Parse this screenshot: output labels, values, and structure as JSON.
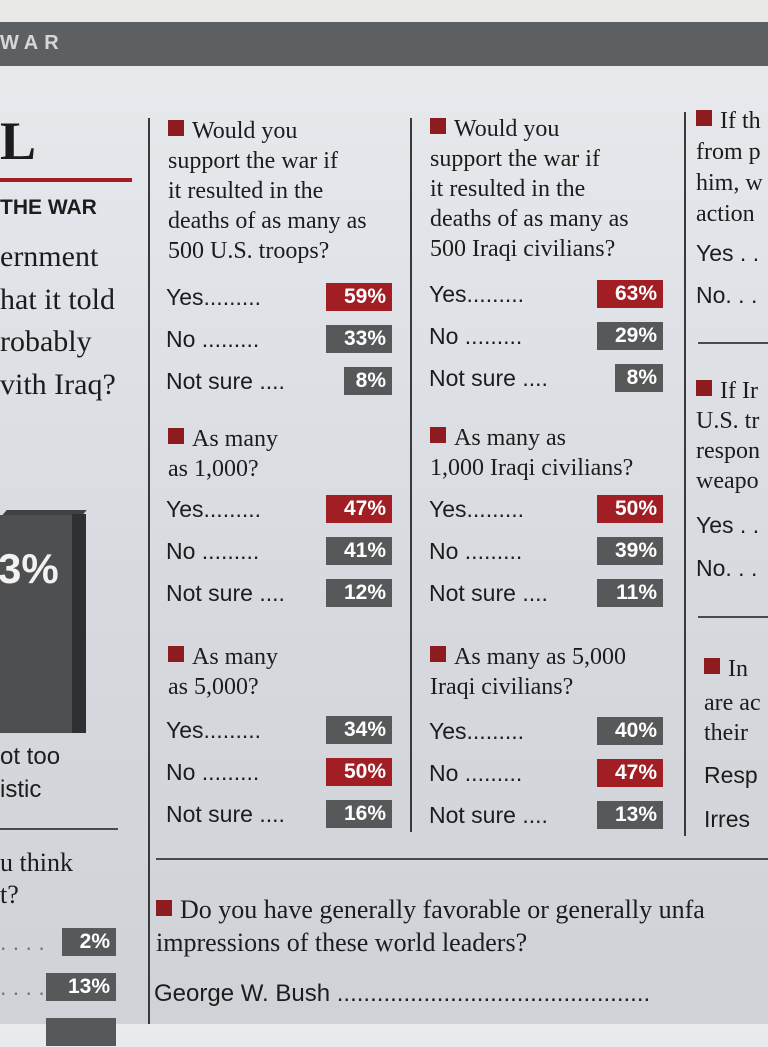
{
  "header": {
    "section_label": "WAR"
  },
  "left_column": {
    "big_letter": "L",
    "kicker": "THE WAR",
    "question_fragments": [
      "ernment",
      "hat it told",
      "robably",
      "vith Iraq?"
    ],
    "chart_value": "3%",
    "caption_fragments": [
      "ot too",
      "istic"
    ],
    "lower_question_fragments": [
      "u think",
      "t?"
    ],
    "lower_values": [
      "2%",
      "13%"
    ]
  },
  "col1": [
    {
      "question": [
        "Would you",
        "support the war if",
        "it resulted in the",
        "deaths of as many as",
        "500 U.S. troops?"
      ],
      "rows": [
        {
          "label": "Yes",
          "dots": ".........",
          "value": "59%",
          "highlight": "red"
        },
        {
          "label": "No",
          "dots": " .........",
          "value": "33%",
          "highlight": "gray"
        },
        {
          "label": "Not sure",
          "dots": " ....",
          "value": "8%",
          "highlight": "gray"
        }
      ]
    },
    {
      "question": [
        "As many",
        "as 1,000?"
      ],
      "rows": [
        {
          "label": "Yes",
          "dots": ".........",
          "value": "47%",
          "highlight": "red"
        },
        {
          "label": "No",
          "dots": " .........",
          "value": "41%",
          "highlight": "gray"
        },
        {
          "label": "Not sure",
          "dots": " ....",
          "value": "12%",
          "highlight": "gray"
        }
      ]
    },
    {
      "question": [
        "As many",
        "as 5,000?"
      ],
      "rows": [
        {
          "label": "Yes",
          "dots": ".........",
          "value": "34%",
          "highlight": "gray"
        },
        {
          "label": "No",
          "dots": " .........",
          "value": "50%",
          "highlight": "red"
        },
        {
          "label": "Not sure",
          "dots": " ....",
          "value": "16%",
          "highlight": "gray"
        }
      ]
    }
  ],
  "col2": [
    {
      "question": [
        "Would you",
        "support the war if",
        "it resulted in the",
        "deaths of as many as",
        "500 Iraqi civilians?"
      ],
      "rows": [
        {
          "label": "Yes",
          "dots": ".........",
          "value": "63%",
          "highlight": "red"
        },
        {
          "label": "No",
          "dots": " .........",
          "value": "29%",
          "highlight": "gray"
        },
        {
          "label": "Not sure",
          "dots": " ....",
          "value": "8%",
          "highlight": "gray"
        }
      ]
    },
    {
      "question": [
        "As many as",
        "1,000 Iraqi civilians?"
      ],
      "rows": [
        {
          "label": "Yes",
          "dots": ".........",
          "value": "50%",
          "highlight": "red"
        },
        {
          "label": "No",
          "dots": " .........",
          "value": "39%",
          "highlight": "gray"
        },
        {
          "label": "Not sure",
          "dots": " ....",
          "value": "11%",
          "highlight": "gray"
        }
      ]
    },
    {
      "question": [
        "As many as 5,000",
        "Iraqi civilians?"
      ],
      "rows": [
        {
          "label": "Yes",
          "dots": ".........",
          "value": "40%",
          "highlight": "gray"
        },
        {
          "label": "No",
          "dots": " .........",
          "value": "47%",
          "highlight": "red"
        },
        {
          "label": "Not sure",
          "dots": " ....",
          "value": "13%",
          "highlight": "gray"
        }
      ]
    }
  ],
  "right_column": {
    "q1": [
      "If th",
      "from p",
      "him, w",
      "action"
    ],
    "q1_rows": [
      "Yes . .",
      "No. . ."
    ],
    "q2": [
      "If Ir",
      "U.S. tr",
      "respon",
      "weapo"
    ],
    "q2_rows": [
      "Yes . .",
      "No. . ."
    ],
    "q3": [
      "In",
      "are ac",
      "their"
    ],
    "q3_rows": [
      "Resp",
      "Irres"
    ]
  },
  "bottom": {
    "question": [
      "Do you have generally favorable or generally unfa",
      "impressions of these world leaders?"
    ],
    "first_leader": "George W. Bush",
    "leader_dots": " ..............................................."
  }
}
